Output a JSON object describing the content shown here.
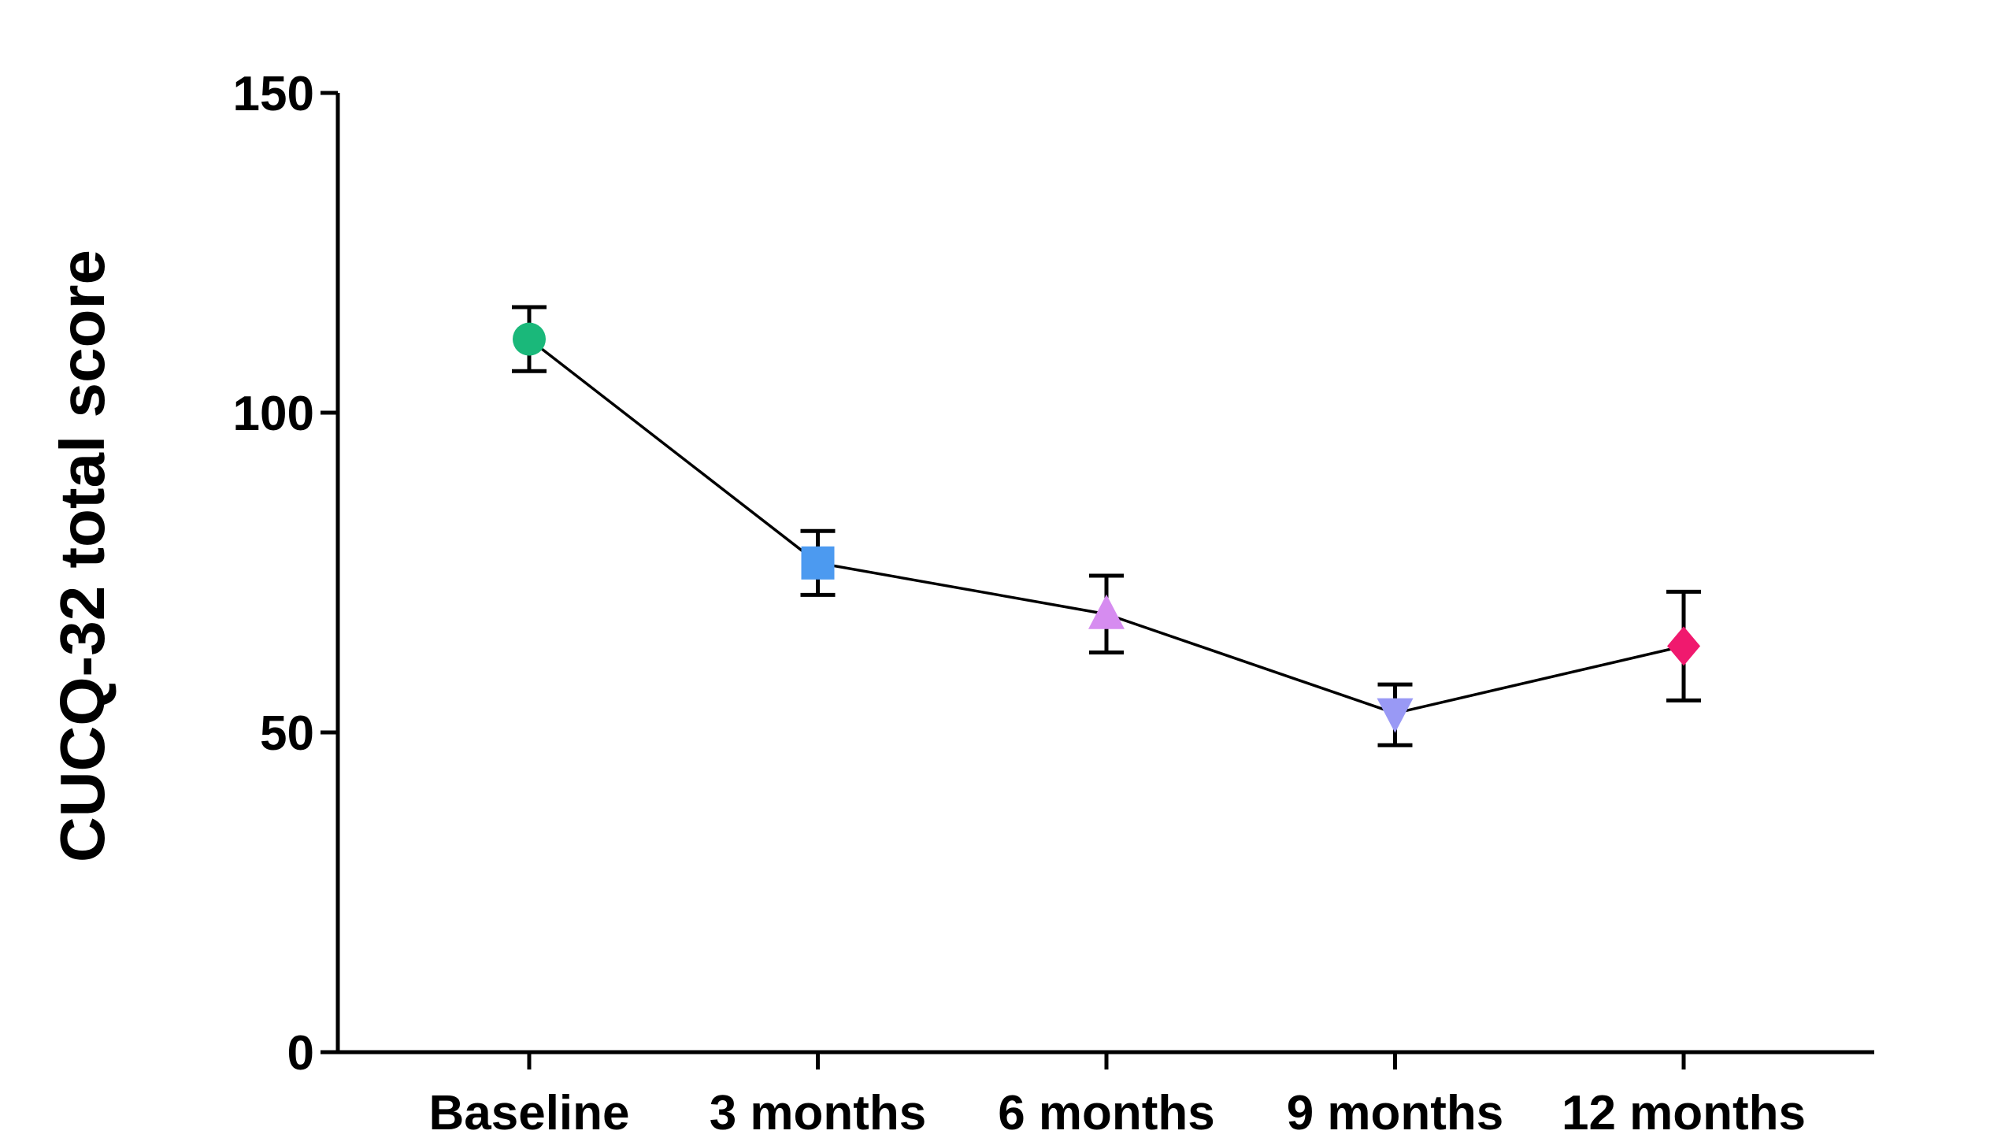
{
  "chart_data": {
    "type": "line",
    "title": "",
    "xlabel": "",
    "ylabel": "CUCQ-32 total score",
    "categories": [
      "Baseline",
      "3 months",
      "6 months",
      "9 months",
      "12 months"
    ],
    "ylim": [
      0,
      150
    ],
    "yticks": [
      0,
      50,
      100,
      150
    ],
    "grid": false,
    "legend": "none",
    "series": [
      {
        "values": [
          111.5,
          76.5,
          68.5,
          53,
          63.5
        ],
        "error_upper": [
          116.5,
          81.5,
          74.5,
          57.5,
          72
        ],
        "error_lower": [
          106.5,
          71.5,
          62.5,
          48,
          55
        ],
        "marker_shapes": [
          "circle",
          "square",
          "triangle-up",
          "triangle-down",
          "diamond"
        ],
        "marker_colors": [
          "#1AB87A",
          "#4C9AF0",
          "#D68CF0",
          "#9999F5",
          "#F0196E"
        ],
        "line_color": "#000000"
      }
    ]
  }
}
